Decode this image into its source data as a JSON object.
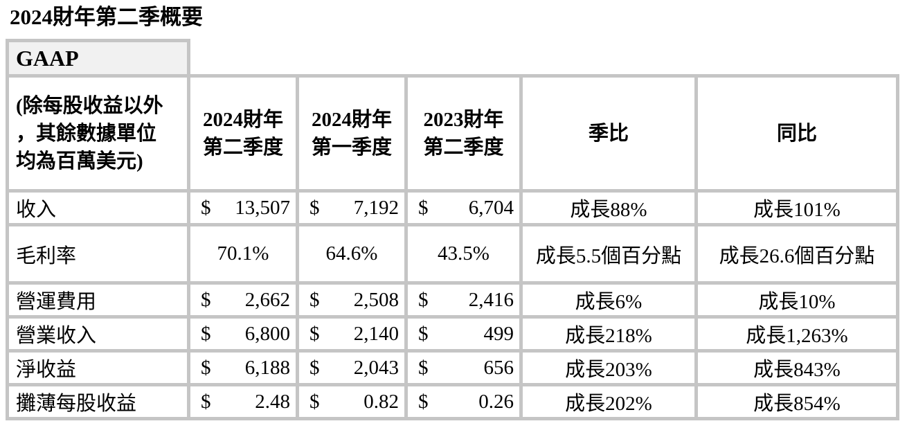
{
  "page_title": "2024財年第二季概要",
  "table": {
    "section_label": "GAAP",
    "currency_symbol": "$",
    "col_headers": [
      "(除每股收益以外\n，其餘數據單位\n均為百萬美元)",
      "2024財年\n第二季度",
      "2024財年\n第一季度",
      "2023財年\n第二季度",
      "季比",
      "同比"
    ],
    "rows": [
      {
        "label": "收入",
        "currency": true,
        "tall": false,
        "fy24q2": "13,507",
        "fy24q1": "7,192",
        "fy23q2": "6,704",
        "qoq": "成長88%",
        "yoy": "成長101%"
      },
      {
        "label": "毛利率",
        "currency": false,
        "tall": true,
        "fy24q2": "70.1%",
        "fy24q1": "64.6%",
        "fy23q2": "43.5%",
        "qoq": "成長5.5個百分點",
        "yoy": "成長26.6個百分點"
      },
      {
        "label": "營運費用",
        "currency": true,
        "tall": false,
        "fy24q2": "2,662",
        "fy24q1": "2,508",
        "fy23q2": "2,416",
        "qoq": "成長6%",
        "yoy": "成長10%"
      },
      {
        "label": "營業收入",
        "currency": true,
        "tall": false,
        "fy24q2": "6,800",
        "fy24q1": "2,140",
        "fy23q2": "499",
        "qoq": "成長218%",
        "yoy": "成長1,263%"
      },
      {
        "label": "淨收益",
        "currency": true,
        "tall": false,
        "fy24q2": "6,188",
        "fy24q1": "2,043",
        "fy23q2": "656",
        "qoq": "成長203%",
        "yoy": "成長843%"
      },
      {
        "label": "攤薄每股收益",
        "currency": true,
        "tall": false,
        "fy24q2": "2.48",
        "fy24q1": "0.82",
        "fy23q2": "0.26",
        "qoq": "成長202%",
        "yoy": "成長854%"
      }
    ]
  },
  "colors": {
    "border": "#c5c5c5",
    "section_bg": "#f1f1f1",
    "text": "#000000",
    "background": "#ffffff"
  }
}
